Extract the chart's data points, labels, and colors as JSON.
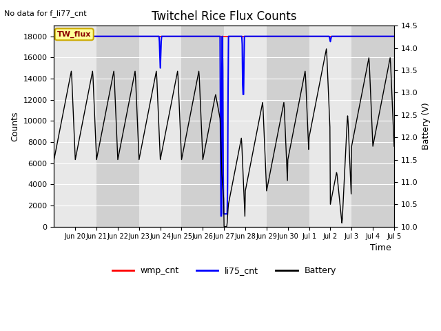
{
  "title": "Twitchel Rice Flux Counts",
  "top_left_text": "No data for f_li77_cnt",
  "xlabel": "Time",
  "ylabel_left": "Counts",
  "ylabel_right": "Battery (V)",
  "ylim_left": [
    0,
    19000
  ],
  "ylim_right": [
    10.0,
    14.5
  ],
  "yticks_left": [
    0,
    2000,
    4000,
    6000,
    8000,
    10000,
    12000,
    14000,
    16000,
    18000
  ],
  "yticks_right": [
    10.0,
    10.5,
    11.0,
    11.5,
    12.0,
    12.5,
    13.0,
    13.5,
    14.0,
    14.5
  ],
  "bg_light": "#e8e8e8",
  "bg_dark": "#d0d0d0",
  "legend_items": [
    "wmp_cnt",
    "li75_cnt",
    "Battery"
  ],
  "legend_colors": [
    "#ff0000",
    "#0000ff",
    "#000000"
  ],
  "wmp_cnt_color": "#ff0000",
  "li75_cnt_color": "#0000ff",
  "battery_color": "#000000",
  "annotation_text": "TW_flux",
  "annotation_bg": "#ffff99",
  "annotation_border": "#ccaa00",
  "tick_labels": [
    "Jun 20",
    "Jun 21",
    "Jun 22",
    "Jun 23",
    "Jun 24",
    "Jun 25",
    "Jun 26",
    "Jun 27",
    "Jun 28",
    "Jun 29",
    "Jun 30",
    "Jul 1",
    "Jul 2",
    "Jul 3",
    "Jul 4",
    "Jul 5"
  ],
  "xlim": [
    0,
    16
  ]
}
